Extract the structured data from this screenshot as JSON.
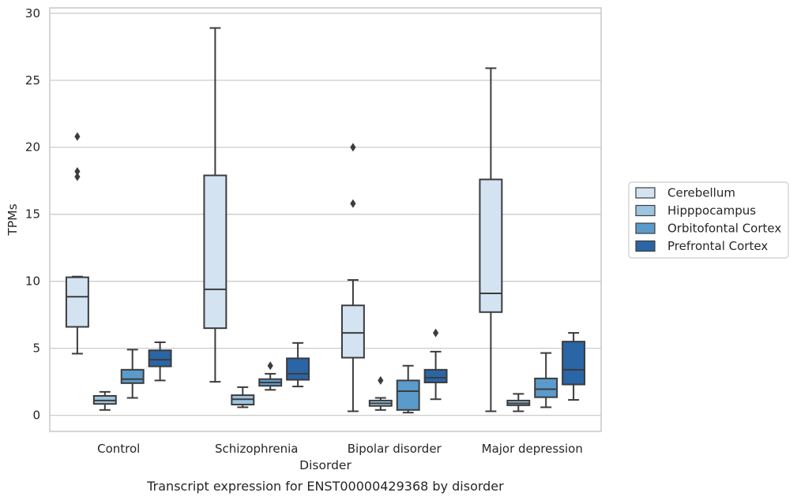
{
  "chart_data": {
    "type": "box",
    "xlabel": "Disorder",
    "ylabel": "TPMs",
    "caption": "Transcript expression for ENST00000429368 by disorder",
    "ylim": [
      -1.2,
      30.4
    ],
    "yticks": [
      "0",
      "5",
      "10",
      "15",
      "20",
      "25",
      "30"
    ],
    "grid": "horizontal",
    "legend_position": "right",
    "categories": [
      "Control",
      "Schizophrenia",
      "Bipolar disorder",
      "Major depression"
    ],
    "series": [
      {
        "name": "Cerebellum",
        "color": "#d3e3f2",
        "boxes": [
          {
            "whisker_low": 4.6,
            "q1": 6.6,
            "median": 8.85,
            "q3": 10.3,
            "whisker_high": 10.35,
            "outliers": [
              17.8,
              18.2,
              20.8
            ]
          },
          {
            "whisker_low": 2.5,
            "q1": 6.5,
            "median": 9.4,
            "q3": 17.9,
            "whisker_high": 28.9,
            "outliers": []
          },
          {
            "whisker_low": 0.3,
            "q1": 4.3,
            "median": 6.15,
            "q3": 8.2,
            "whisker_high": 10.1,
            "outliers": [
              15.8,
              20.0
            ]
          },
          {
            "whisker_low": 0.3,
            "q1": 7.7,
            "median": 9.1,
            "q3": 17.6,
            "whisker_high": 25.9,
            "outliers": []
          }
        ]
      },
      {
        "name": "Hipppocampus",
        "color": "#9ec5df",
        "boxes": [
          {
            "whisker_low": 0.4,
            "q1": 0.85,
            "median": 1.1,
            "q3": 1.45,
            "whisker_high": 1.75,
            "outliers": []
          },
          {
            "whisker_low": 0.6,
            "q1": 0.8,
            "median": 1.2,
            "q3": 1.5,
            "whisker_high": 2.1,
            "outliers": []
          },
          {
            "whisker_low": 0.4,
            "q1": 0.7,
            "median": 0.9,
            "q3": 1.1,
            "whisker_high": 1.3,
            "outliers": [
              2.6
            ]
          },
          {
            "whisker_low": 0.3,
            "q1": 0.75,
            "median": 0.9,
            "q3": 1.1,
            "whisker_high": 1.6,
            "outliers": []
          }
        ]
      },
      {
        "name": "Orbitofontal Cortex",
        "color": "#5b9bcb",
        "boxes": [
          {
            "whisker_low": 1.3,
            "q1": 2.4,
            "median": 2.7,
            "q3": 3.4,
            "whisker_high": 4.9,
            "outliers": []
          },
          {
            "whisker_low": 1.9,
            "q1": 2.2,
            "median": 2.45,
            "q3": 2.7,
            "whisker_high": 3.1,
            "outliers": [
              3.7
            ]
          },
          {
            "whisker_low": 0.2,
            "q1": 0.4,
            "median": 1.8,
            "q3": 2.6,
            "whisker_high": 3.7,
            "outliers": []
          },
          {
            "whisker_low": 0.6,
            "q1": 1.35,
            "median": 1.95,
            "q3": 2.75,
            "whisker_high": 4.65,
            "outliers": []
          }
        ]
      },
      {
        "name": "Prefrontal Cortex",
        "color": "#2a65a5",
        "boxes": [
          {
            "whisker_low": 2.6,
            "q1": 3.65,
            "median": 4.15,
            "q3": 4.85,
            "whisker_high": 5.45,
            "outliers": []
          },
          {
            "whisker_low": 2.15,
            "q1": 2.65,
            "median": 3.1,
            "q3": 4.25,
            "whisker_high": 5.4,
            "outliers": []
          },
          {
            "whisker_low": 1.2,
            "q1": 2.45,
            "median": 2.8,
            "q3": 3.4,
            "whisker_high": 4.75,
            "outliers": [
              6.15
            ]
          },
          {
            "whisker_low": 1.15,
            "q1": 2.3,
            "median": 3.4,
            "q3": 5.5,
            "whisker_high": 6.15,
            "outliers": []
          }
        ]
      }
    ]
  }
}
